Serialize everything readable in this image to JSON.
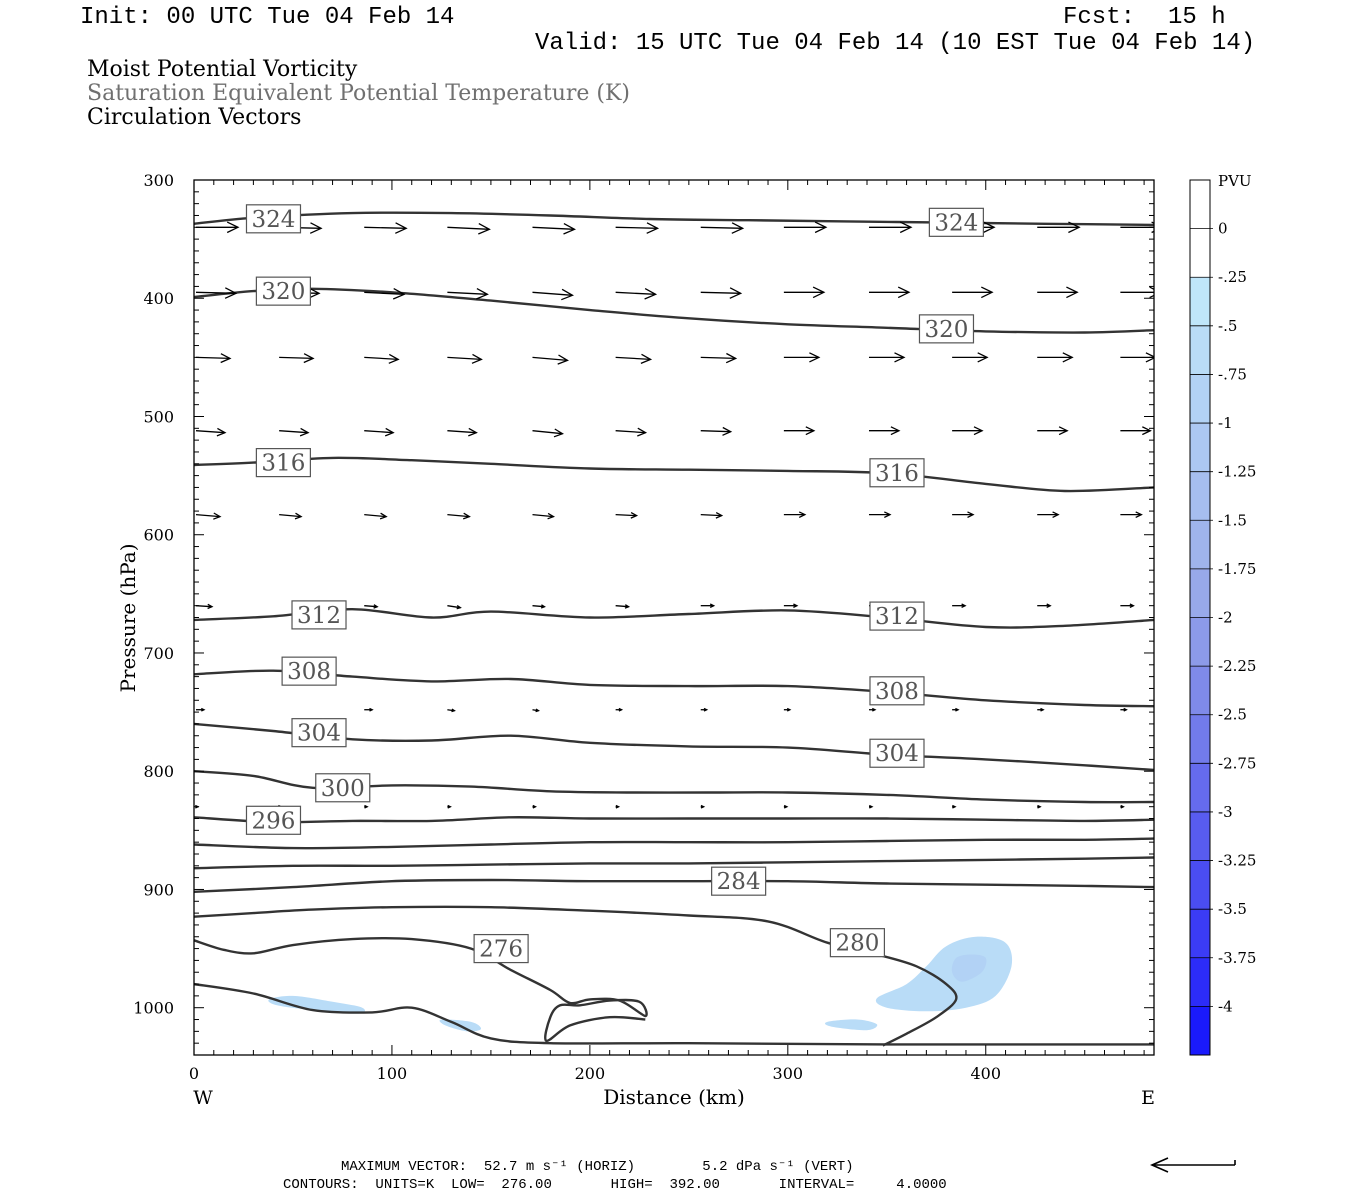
{
  "header": {
    "init": "Init: 00 UTC Tue 04 Feb 14",
    "fcst_label": "Fcst:",
    "fcst_value": "15 h",
    "valid": "Valid: 15 UTC Tue 04 Feb 14 (10 EST Tue 04 Feb 14)"
  },
  "titles": {
    "line1": "Moist Potential Vorticity",
    "line2": "Saturation Equivalent Potential Temperature (K)",
    "line3": "Circulation Vectors",
    "line2_color": "#707070"
  },
  "footer": {
    "max_vector": "MAXIMUM VECTOR:  52.7 m s⁻¹ (HORIZ)        5.2 dPa s⁻¹ (VERT)",
    "contours": "CONTOURS:  UNITS=K  LOW=  276.00       HIGH=  392.00       INTERVAL=     4.0000"
  },
  "chart_data": {
    "type": "contour",
    "xlabel": "Distance (km)",
    "ylabel": "Pressure (hPa)",
    "x_ends": [
      "W",
      "E"
    ],
    "xlim": [
      0,
      485
    ],
    "ylim": [
      300,
      1040
    ],
    "x_ticks": [
      0,
      100,
      200,
      300,
      400
    ],
    "y_ticks": [
      300,
      400,
      500,
      600,
      700,
      800,
      900,
      1000
    ],
    "colorbar": {
      "unit": "PVU",
      "labels": [
        "0",
        "-.25",
        "-.5",
        "-.75",
        "-1",
        "-1.25",
        "-1.5",
        "-1.75",
        "-2",
        "-2.25",
        "-2.5",
        "-2.75",
        "-3",
        "-3.25",
        "-3.5",
        "-3.75",
        "-4"
      ],
      "colors": [
        "#ffffff",
        "#ffffff",
        "#bfe6fa",
        "#b9dcf7",
        "#b2d2f5",
        "#acc8f2",
        "#a6beef",
        "#9fb4ec",
        "#98a9ea",
        "#8c9ae9",
        "#7f8ae9",
        "#727beb",
        "#656bed",
        "#585cef",
        "#4a4df2",
        "#3b3cf5",
        "#2c2cf8",
        "#1a1afc"
      ]
    },
    "theta_contours": [
      {
        "label": "324",
        "x": [
          0,
          30,
          80,
          130,
          180,
          230,
          280,
          330,
          380,
          430,
          485
        ],
        "p": [
          337,
          332,
          328,
          328,
          330,
          333,
          334,
          335,
          336,
          337,
          338
        ]
      },
      {
        "label": "320",
        "x": [
          0,
          30,
          60,
          100,
          150,
          200,
          250,
          300,
          350,
          400,
          450,
          485
        ],
        "p": [
          399,
          394,
          392,
          395,
          402,
          410,
          417,
          422,
          425,
          428,
          429,
          427
        ]
      },
      {
        "label": "316",
        "x": [
          0,
          30,
          70,
          110,
          150,
          200,
          250,
          300,
          350,
          400,
          440,
          485
        ],
        "p": [
          541,
          539,
          535,
          537,
          540,
          544,
          545,
          546,
          548,
          557,
          563,
          560
        ]
      },
      {
        "label": "312",
        "x": [
          0,
          40,
          80,
          120,
          150,
          200,
          250,
          300,
          350,
          400,
          440,
          485
        ],
        "p": [
          672,
          669,
          663,
          670,
          665,
          670,
          667,
          664,
          670,
          678,
          677,
          672
        ]
      },
      {
        "label": "308",
        "x": [
          0,
          40,
          80,
          120,
          160,
          200,
          250,
          300,
          350,
          400,
          450,
          485
        ],
        "p": [
          718,
          715,
          720,
          724,
          722,
          727,
          728,
          728,
          733,
          740,
          744,
          745
        ]
      },
      {
        "label": "304",
        "x": [
          0,
          40,
          80,
          120,
          160,
          200,
          250,
          300,
          350,
          400,
          450,
          485
        ],
        "p": [
          760,
          766,
          773,
          774,
          770,
          776,
          779,
          780,
          786,
          790,
          795,
          799
        ]
      },
      {
        "label": "300",
        "x": [
          0,
          30,
          60,
          100,
          140,
          180,
          220,
          260,
          300,
          350,
          400,
          450,
          485
        ],
        "p": [
          800,
          804,
          814,
          812,
          813,
          817,
          818,
          818,
          818,
          820,
          824,
          826,
          826
        ]
      },
      {
        "label": "296",
        "x": [
          0,
          40,
          80,
          120,
          160,
          200,
          250,
          300,
          350,
          400,
          450,
          485
        ],
        "p": [
          839,
          843,
          842,
          842,
          839,
          840,
          840,
          840,
          840,
          841,
          842,
          841
        ]
      },
      {
        "label": "",
        "x": [
          0,
          50,
          100,
          150,
          200,
          250,
          300,
          350,
          400,
          450,
          485
        ],
        "p": [
          862,
          865,
          864,
          862,
          860,
          860,
          860,
          859,
          858,
          858,
          857
        ]
      },
      {
        "label": "",
        "x": [
          0,
          50,
          100,
          150,
          200,
          250,
          300,
          350,
          400,
          450,
          485
        ],
        "p": [
          882,
          880,
          880,
          879,
          878,
          878,
          877,
          876,
          875,
          874,
          873
        ]
      },
      {
        "label": "284",
        "x": [
          0,
          50,
          100,
          150,
          200,
          250,
          300,
          350,
          400,
          450,
          485
        ],
        "p": [
          902,
          898,
          893,
          892,
          893,
          893,
          893,
          895,
          896,
          897,
          898
        ]
      },
      {
        "label": "280",
        "x": [
          0,
          30,
          60,
          100,
          150,
          200,
          250,
          290,
          320,
          345,
          365,
          380,
          385,
          375,
          360,
          348
        ],
        "p": [
          923,
          920,
          917,
          915,
          915,
          918,
          922,
          927,
          945,
          955,
          965,
          980,
          993,
          1008,
          1022,
          1032
        ]
      },
      {
        "label": "276",
        "x": [
          0,
          15,
          30,
          50,
          80,
          110,
          140,
          160,
          180,
          190,
          200,
          215,
          228,
          225,
          210,
          195,
          185,
          180,
          178,
          190,
          210,
          228
        ],
        "p": [
          943,
          951,
          954,
          947,
          942,
          942,
          950,
          968,
          985,
          996,
          993,
          994,
          1007,
          995,
          994,
          998,
          998,
          1008,
          1028,
          1015,
          1008,
          1010
        ]
      },
      {
        "label": "",
        "x": [
          0,
          30,
          60,
          90,
          110,
          130,
          150,
          180,
          250,
          350,
          485
        ],
        "p": [
          980,
          988,
          1002,
          1004,
          1000,
          1012,
          1026,
          1030,
          1030,
          1031,
          1031
        ]
      }
    ],
    "pv_shading": [
      {
        "value": -0.5,
        "x": [
          370,
          380,
          395,
          410,
          413,
          405,
          390,
          370,
          350,
          345,
          360
        ],
        "p": [
          965,
          948,
          940,
          945,
          965,
          990,
          1000,
          1003,
          1000,
          992,
          980
        ]
      },
      {
        "value": -0.5,
        "x": [
          38,
          50,
          70,
          85,
          83,
          60,
          42
        ],
        "p": [
          993,
          990,
          995,
          1000,
          1005,
          1002,
          998
        ]
      },
      {
        "value": -0.5,
        "x": [
          125,
          140,
          145,
          138,
          127
        ],
        "p": [
          1010,
          1012,
          1018,
          1020,
          1015
        ]
      },
      {
        "value": -0.5,
        "x": [
          320,
          335,
          345,
          340,
          322
        ],
        "p": [
          1012,
          1010,
          1014,
          1019,
          1016
        ]
      },
      {
        "value": -0.75,
        "x": [
          385,
          393,
          400,
          398,
          388,
          383
        ],
        "p": [
          958,
          955,
          958,
          970,
          978,
          970
        ]
      }
    ],
    "vectors": {
      "x": [
        0,
        42,
        85,
        127,
        170,
        212,
        255,
        297,
        340,
        382,
        425,
        467
      ],
      "levels": [
        {
          "p": 340,
          "u": [
            42,
            42,
            42,
            42,
            42,
            42,
            42,
            42,
            42,
            42,
            42,
            42
          ],
          "w": [
            0,
            1,
            1,
            2,
            2,
            1,
            1,
            0,
            0,
            0,
            0,
            0
          ]
        },
        {
          "p": 395,
          "u": [
            40,
            40,
            40,
            40,
            40,
            40,
            40,
            40,
            40,
            40,
            40,
            40
          ],
          "w": [
            1,
            1,
            2,
            2,
            3,
            2,
            1,
            0,
            0,
            0,
            0,
            0
          ]
        },
        {
          "p": 450,
          "u": [
            34,
            34,
            34,
            34,
            35,
            35,
            35,
            35,
            35,
            35,
            35,
            35
          ],
          "w": [
            1,
            1,
            2,
            2,
            3,
            2,
            1,
            0,
            0,
            0,
            0,
            0
          ]
        },
        {
          "p": 512,
          "u": [
            29,
            29,
            29,
            29,
            30,
            30,
            30,
            30,
            30,
            30,
            30,
            30
          ],
          "w": [
            2,
            2,
            2,
            2,
            3,
            2,
            1,
            0,
            0,
            0,
            0,
            0
          ]
        },
        {
          "p": 583,
          "u": [
            24,
            22,
            22,
            22,
            21,
            21,
            21,
            21,
            21,
            21,
            21,
            21
          ],
          "w": [
            2,
            2,
            2,
            2,
            2,
            1,
            1,
            0,
            0,
            0,
            0,
            0
          ]
        },
        {
          "p": 660,
          "u": [
            16,
            0,
            13,
            13,
            12,
            13,
            13,
            13,
            13,
            13,
            13,
            13
          ],
          "w": [
            1,
            0,
            1,
            2,
            1,
            1,
            0,
            0,
            0,
            0,
            0,
            0
          ]
        },
        {
          "p": 748,
          "u": [
            8,
            0,
            8,
            7,
            6,
            6,
            6,
            6,
            6,
            6,
            6,
            6
          ],
          "w": [
            0,
            0,
            0,
            1,
            1,
            0,
            0,
            0,
            0,
            0,
            0,
            0
          ]
        },
        {
          "p": 830,
          "u": [
            2,
            2,
            3,
            3,
            3,
            3,
            3,
            3,
            3,
            3,
            3,
            3
          ],
          "w": [
            0,
            0,
            0,
            0,
            0,
            0,
            0,
            0,
            0,
            0,
            0,
            0
          ]
        }
      ]
    }
  }
}
